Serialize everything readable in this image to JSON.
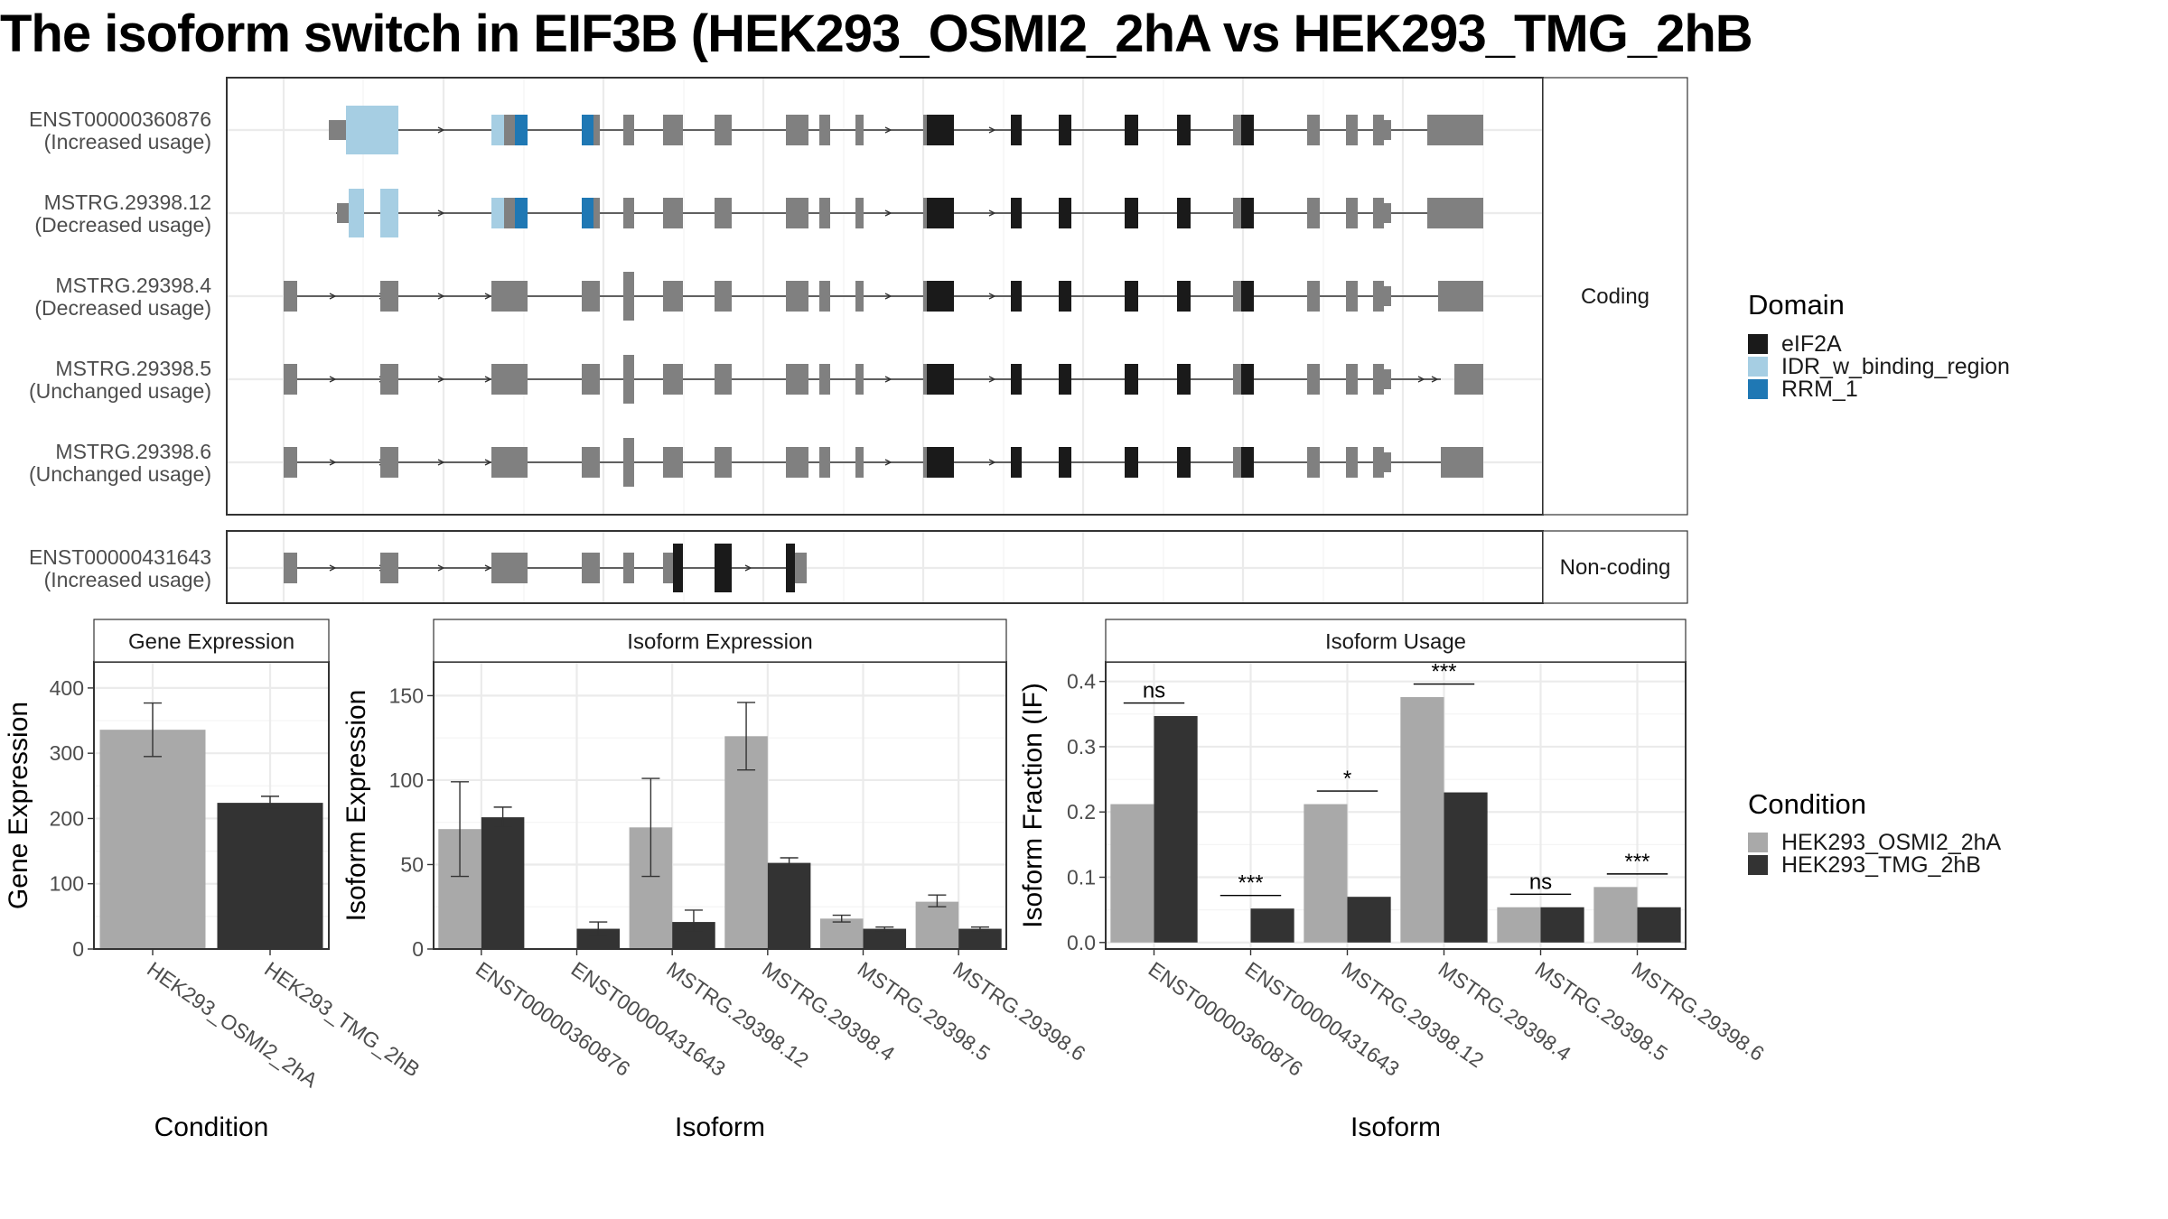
{
  "title": "The isoform switch in EIF3B (HEK293_OSMI2_2hA vs HEK293_TMG_2hB",
  "colors": {
    "exon": "#808080",
    "eIF2A": "#1a1a1a",
    "IDR": "#a6cee3",
    "RRM": "#1f78b4",
    "cond1": "#a9a9a9",
    "cond2": "#333333",
    "grid": "#ebebeb",
    "panel_border": "#333333",
    "strip_bg": "#ffffff"
  },
  "structure": {
    "facet_coding": "Coding",
    "facet_noncoding": "Non-coding",
    "transcripts": [
      {
        "id": "ENST00000360876",
        "usage": "(Increased usage)",
        "group": "coding",
        "type": "A"
      },
      {
        "id": "MSTRG.29398.12",
        "usage": "(Decreased usage)",
        "group": "coding",
        "type": "B"
      },
      {
        "id": "MSTRG.29398.4",
        "usage": "(Decreased usage)",
        "group": "coding",
        "type": "C"
      },
      {
        "id": "MSTRG.29398.5",
        "usage": "(Unchanged usage)",
        "group": "coding",
        "type": "D"
      },
      {
        "id": "MSTRG.29398.6",
        "usage": "(Unchanged usage)",
        "group": "coding",
        "type": "E"
      },
      {
        "id": "ENST00000431643",
        "usage": "(Increased usage)",
        "group": "noncoding",
        "type": "F"
      }
    ]
  },
  "legend_domain": {
    "title": "Domain",
    "items": [
      {
        "label": "eIF2A",
        "color": "#1a1a1a"
      },
      {
        "label": "IDR_w_binding_region",
        "color": "#a6cee3"
      },
      {
        "label": "RRM_1",
        "color": "#1f78b4"
      }
    ]
  },
  "legend_condition": {
    "title": "Condition",
    "items": [
      {
        "label": "HEK293_OSMI2_2hA",
        "color": "#a9a9a9"
      },
      {
        "label": "HEK293_TMG_2hB",
        "color": "#333333"
      }
    ]
  },
  "chart_data": [
    {
      "type": "bar",
      "title": "Gene Expression",
      "xlabel": "Condition",
      "ylabel": "Gene Expression",
      "categories": [
        "HEK293_OSMI2_2hA",
        "HEK293_TMG_2hB"
      ],
      "values": [
        336,
        224
      ],
      "errors": [
        [
          295,
          377
        ],
        [
          216,
          234
        ]
      ],
      "ylim": [
        0,
        440
      ],
      "yticks": [
        0,
        100,
        200,
        300,
        400
      ]
    },
    {
      "type": "bar",
      "title": "Isoform Expression",
      "xlabel": "Isoform",
      "ylabel": "Isoform Expression",
      "categories": [
        "ENST00000360876",
        "ENST00000431643",
        "MSTRG.29398.12",
        "MSTRG.29398.4",
        "MSTRG.29398.5",
        "MSTRG.29398.6"
      ],
      "series": [
        {
          "name": "HEK293_OSMI2_2hA",
          "values": [
            71,
            0,
            72,
            126,
            18,
            28
          ],
          "errors": [
            [
              43,
              99
            ],
            [
              0,
              0
            ],
            [
              43,
              101
            ],
            [
              106,
              146
            ],
            [
              16,
              20
            ],
            [
              25,
              32
            ]
          ]
        },
        {
          "name": "HEK293_TMG_2hB",
          "values": [
            78,
            12,
            16,
            51,
            12,
            12
          ],
          "errors": [
            [
              72,
              84
            ],
            [
              8,
              16
            ],
            [
              10,
              23
            ],
            [
              49,
              54
            ],
            [
              11,
              13
            ],
            [
              11,
              13
            ]
          ]
        }
      ],
      "ylim": [
        0,
        170
      ],
      "yticks": [
        0,
        50,
        100,
        150
      ]
    },
    {
      "type": "bar",
      "title": "Isoform Usage",
      "xlabel": "Isoform",
      "ylabel": "Isoform Fraction (IF)",
      "categories": [
        "ENST00000360876",
        "ENST00000431643",
        "MSTRG.29398.12",
        "MSTRG.29398.4",
        "MSTRG.29398.5",
        "MSTRG.29398.6"
      ],
      "series": [
        {
          "name": "HEK293_OSMI2_2hA",
          "values": [
            0.212,
            0.0,
            0.212,
            0.376,
            0.054,
            0.085
          ]
        },
        {
          "name": "HEK293_TMG_2hB",
          "values": [
            0.347,
            0.052,
            0.07,
            0.23,
            0.054,
            0.054
          ]
        }
      ],
      "significance": [
        "ns",
        "***",
        "*",
        "***",
        "ns",
        "***"
      ],
      "sig_height": [
        0.367,
        0.072,
        0.232,
        0.396,
        0.074,
        0.105
      ],
      "ylim": [
        -0.01,
        0.43
      ],
      "yticks": [
        0.0,
        0.1,
        0.2,
        0.3,
        0.4
      ],
      "ytick_labels": [
        "0.0",
        "0.1",
        "0.2",
        "0.3",
        "0.4"
      ]
    }
  ]
}
